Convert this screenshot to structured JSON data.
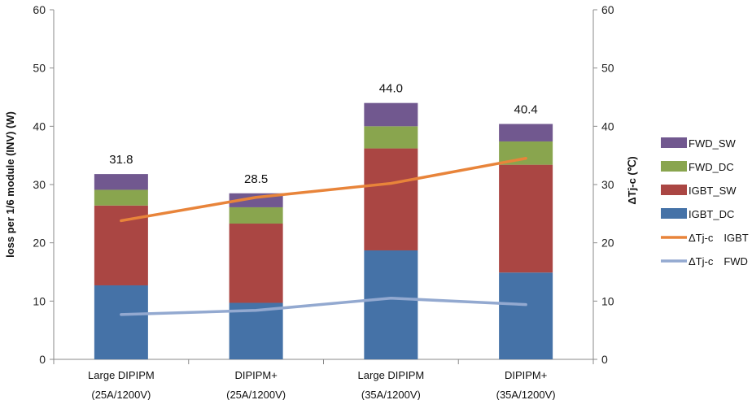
{
  "chart_data": {
    "type": "bar",
    "stacked": true,
    "categories": [
      [
        "Large DIPIPM",
        "(25A/1200V)"
      ],
      [
        "DIPIPM+",
        "(25A/1200V)"
      ],
      [
        "Large DIPIPM",
        "(35A/1200V)"
      ],
      [
        "DIPIPM+",
        "(35A/1200V)"
      ]
    ],
    "series": [
      {
        "name": "IGBT_DC",
        "kind": "bar",
        "color": "#4572A7",
        "values": [
          12.7,
          9.7,
          18.7,
          14.9
        ]
      },
      {
        "name": "IGBT_SW",
        "kind": "bar",
        "color": "#AA4643",
        "values": [
          13.7,
          13.6,
          17.5,
          18.5
        ]
      },
      {
        "name": "FWD_DC",
        "kind": "bar",
        "color": "#89A54E",
        "values": [
          2.7,
          2.8,
          3.8,
          4.0
        ]
      },
      {
        "name": "FWD_SW",
        "kind": "bar",
        "color": "#71588F",
        "values": [
          2.7,
          2.4,
          4.0,
          3.0
        ]
      },
      {
        "name": "ΔTj-c　IGBT",
        "kind": "line",
        "axis": "right",
        "color": "#E8843A",
        "values": [
          23.8,
          27.8,
          30.2,
          34.5
        ]
      },
      {
        "name": "ΔTj-c　FWD",
        "kind": "line",
        "axis": "right",
        "color": "#93A9D0",
        "values": [
          7.7,
          8.4,
          10.5,
          9.4
        ]
      }
    ],
    "totals": [
      "31.8",
      "28.5",
      "44.0",
      "40.4"
    ],
    "ylabel": "loss per  1/6 module (INV) (W)",
    "y2label": "ΔTj-c (℃)",
    "ylim": [
      0,
      60
    ],
    "y2lim": [
      0,
      60
    ],
    "yticks": [
      0,
      10,
      20,
      30,
      40,
      50,
      60
    ],
    "grid": false,
    "legend": "right"
  }
}
